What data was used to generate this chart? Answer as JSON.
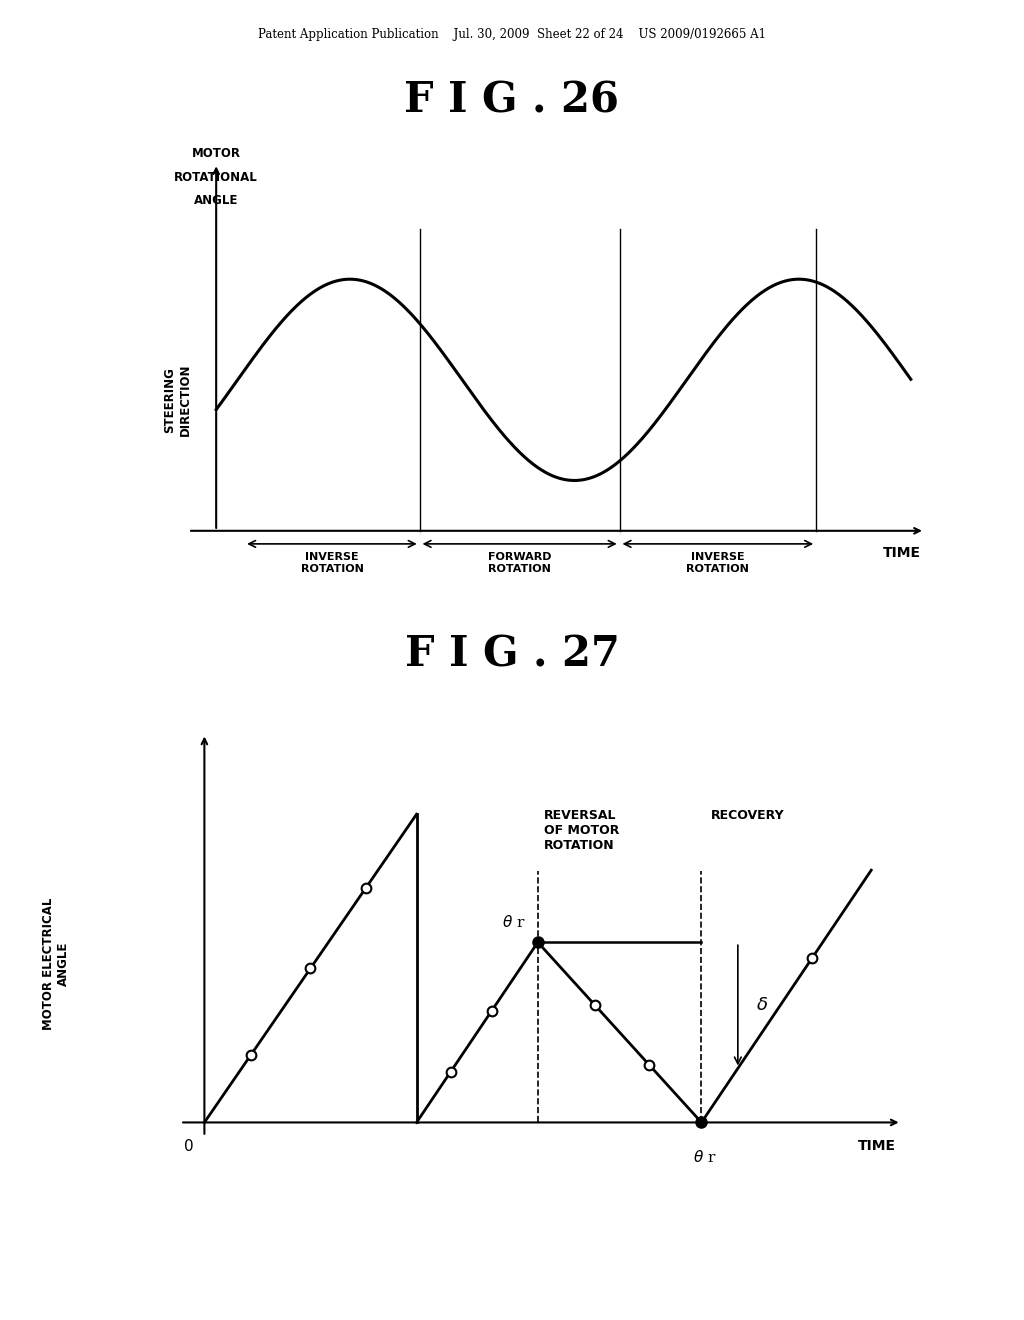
{
  "bg_color": "#ffffff",
  "header_text": "Patent Application Publication    Jul. 30, 2009  Sheet 22 of 24    US 2009/0192665 A1",
  "fig26_title": "F I G . 26",
  "fig27_title": "F I G . 27",
  "fig26_xlabel": "TIME",
  "fig26_ylabel_line1": "MOTOR",
  "fig26_ylabel_line2": "ROTATIONAL",
  "fig26_ylabel_line3": "ANGLE",
  "fig26_left_label": "STEERING\nDIRECTION",
  "fig27_ylabel": "MOTOR ELECTRICAL\nANGLE",
  "fig27_xlabel": "TIME",
  "fig27_label_reversal": "REVERSAL\nOF MOTOR\nROTATION",
  "fig27_label_recovery": "RECOVERY",
  "fig27_label_thetar_top": "θ r",
  "fig27_label_thetar_bot": "θ r",
  "fig27_label_delta": "δ"
}
